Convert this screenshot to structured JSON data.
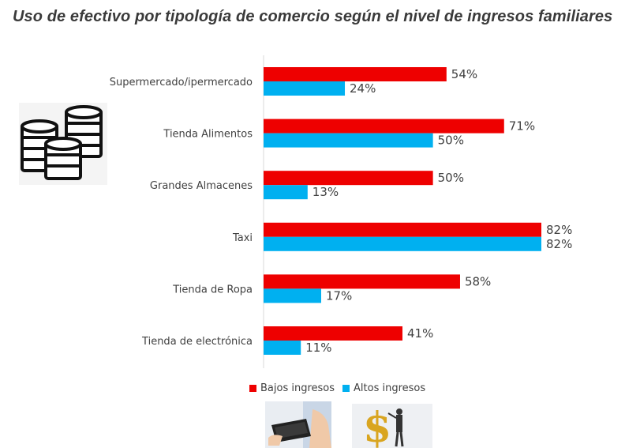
{
  "title": "Uso de efectivo por tipología de comercio según el nivel de ingresos familiares",
  "colors": {
    "bajos": "#ee0000",
    "altos": "#00b0f0",
    "axis": "#d9d9d9",
    "text": "#404040"
  },
  "chart_data": {
    "type": "bar",
    "orientation": "horizontal",
    "title": "Uso de efectivo por tipología de comercio según el nivel de ingresos familiares",
    "categories": [
      "Supermercado/ipermercado",
      "Tienda Alimentos",
      "Grandes Almacenes",
      "Taxi",
      "Tienda de Ropa",
      "Tienda de electrónica"
    ],
    "series": [
      {
        "name": "Bajos ingresos",
        "color": "#ee0000",
        "values": [
          54,
          71,
          50,
          82,
          58,
          41
        ],
        "labels": [
          "54%",
          "71%",
          "50%",
          "82%",
          "58%",
          "41%"
        ]
      },
      {
        "name": "Altos ingresos",
        "color": "#00b0f0",
        "values": [
          24,
          50,
          13,
          82,
          17,
          11
        ],
        "labels": [
          "24%",
          "50%",
          "13%",
          "82%",
          "17%",
          "11%"
        ]
      }
    ],
    "unit": "%",
    "xlim": [
      0,
      100
    ],
    "grid": false,
    "legend_position": "bottom"
  },
  "legend": {
    "items": [
      {
        "label": "Bajos ingresos",
        "color": "#ee0000"
      },
      {
        "label": "Altos ingresos",
        "color": "#00b0f0"
      }
    ]
  },
  "icons": {
    "coins": "coins-stack-icon",
    "wallet": "empty-wallet-icon",
    "dollar_man": "dollar-sign-man-icon"
  }
}
